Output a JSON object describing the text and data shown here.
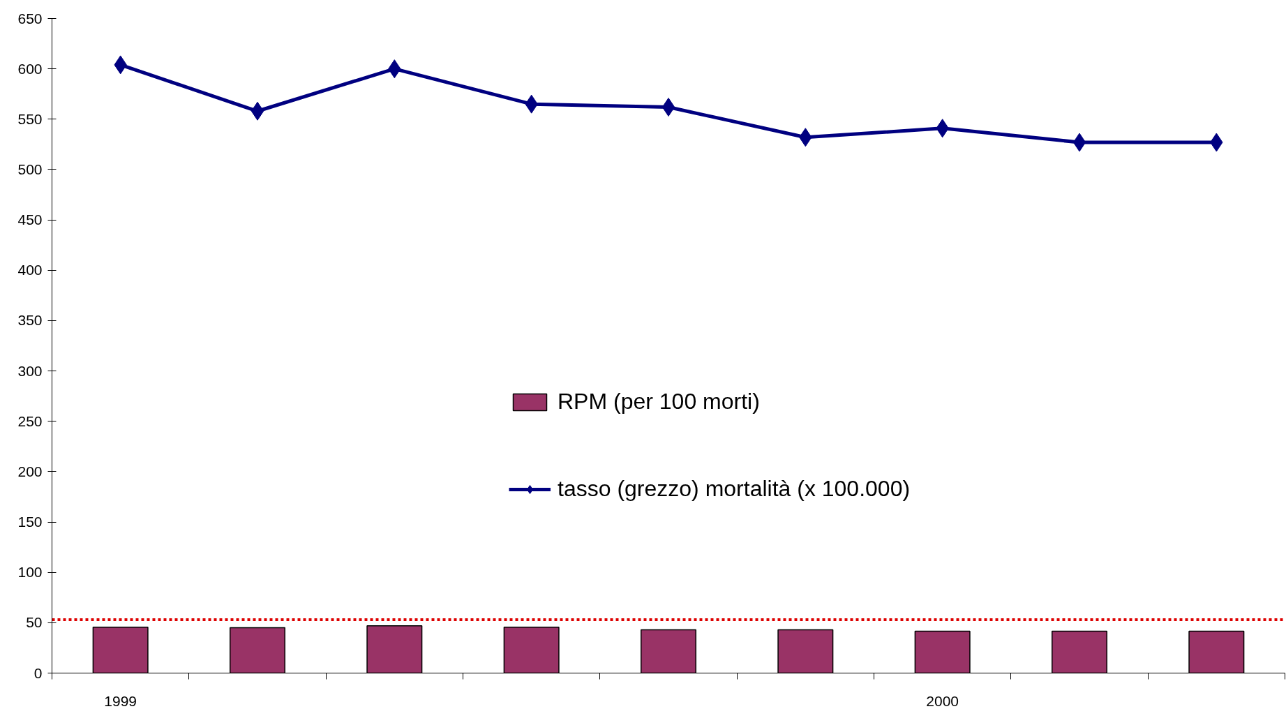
{
  "chart_data": {
    "type": "bar",
    "categories": [
      "1999",
      null,
      null,
      null,
      null,
      null,
      "2000",
      null,
      null
    ],
    "series": [
      {
        "name": "RPM (per 100 morti)",
        "color": "#993366",
        "values": [
          45.5,
          45,
          47,
          45.5,
          43,
          43,
          41.5,
          41.5,
          41.5
        ]
      },
      {
        "name": "tasso (grezzo) mortalità (x 100.000)",
        "type": "line",
        "color": "#000080",
        "values": [
          604,
          558,
          600,
          565,
          562,
          532,
          541,
          527,
          527
        ]
      }
    ],
    "ylim": [
      0,
      650
    ],
    "yticks": [
      0,
      50,
      100,
      150,
      200,
      250,
      300,
      350,
      400,
      450,
      500,
      550,
      600,
      650
    ],
    "grid": false,
    "legend": "center",
    "marker": "diamond",
    "line_style": "solid",
    "ref_lines": [
      {
        "axis": "y",
        "value": 53,
        "color": "#dd0000",
        "line_style": "dotted"
      }
    ]
  }
}
